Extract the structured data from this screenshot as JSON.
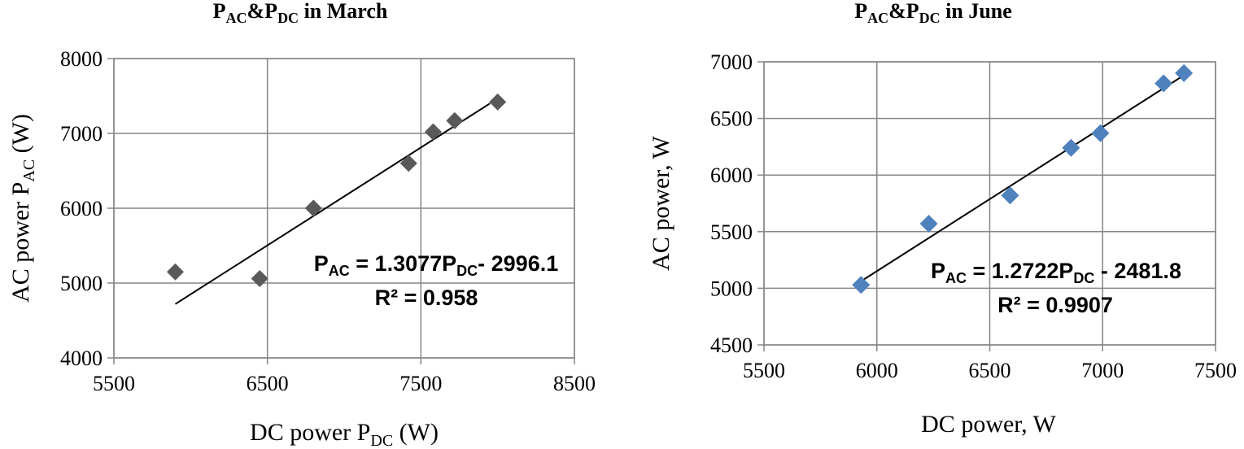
{
  "chart_data": [
    {
      "type": "scatter",
      "title": {
        "main": "P",
        "sub1": "AC",
        "mid": "&P",
        "sub2": "DC",
        "tail": " in March"
      },
      "xlabel": {
        "main": "DC power P",
        "sub": "DC",
        "tail": " (W)"
      },
      "ylabel": {
        "main": "AC power P",
        "sub": "AC",
        "tail": " (W)"
      },
      "xlim": [
        5500,
        8500
      ],
      "ylim": [
        4000,
        8000
      ],
      "x_ticks": [
        5500,
        6500,
        7500,
        8500
      ],
      "y_ticks": [
        4000,
        5000,
        6000,
        7000,
        8000
      ],
      "x_tick_labels": [
        "5500",
        "6500",
        "7500",
        "8500"
      ],
      "y_tick_labels": [
        "4000",
        "5000",
        "6000",
        "7000",
        "8000"
      ],
      "grid": true,
      "marker_color": "#595959",
      "points": [
        {
          "x": 5900,
          "y": 5150
        },
        {
          "x": 6450,
          "y": 5060
        },
        {
          "x": 6800,
          "y": 6000
        },
        {
          "x": 7420,
          "y": 6600
        },
        {
          "x": 7580,
          "y": 7020
        },
        {
          "x": 7720,
          "y": 7170
        },
        {
          "x": 8000,
          "y": 7420
        }
      ],
      "trendline": {
        "slope": 1.3077,
        "intercept": -2996.1,
        "x_range": [
          5900,
          7950
        ]
      },
      "equation": {
        "lhs": "P",
        "lhs_sub": "AC",
        "mid": " = 1.3077P",
        "mid_sub": "DC",
        "rhs": "- 2996.1"
      },
      "r2": "R² = 0.958"
    },
    {
      "type": "scatter",
      "title": {
        "main": "P",
        "sub1": "AC",
        "mid": "&P",
        "sub2": "DC",
        "tail": " in June"
      },
      "xlabel": {
        "main": "DC power, W"
      },
      "ylabel": {
        "main": "AC power,  W"
      },
      "xlim": [
        5500,
        7500
      ],
      "ylim": [
        4500,
        7000
      ],
      "x_ticks": [
        5500,
        6000,
        6500,
        7000,
        7500
      ],
      "y_ticks": [
        4500,
        5000,
        5500,
        6000,
        6500,
        7000
      ],
      "x_tick_labels": [
        "5500",
        "6000",
        "6500",
        "7000",
        "7500"
      ],
      "y_tick_labels": [
        "4500",
        "5000",
        "5500",
        "6000",
        "6500",
        "7000"
      ],
      "grid": true,
      "marker_color": "#4f81bd",
      "points": [
        {
          "x": 5930,
          "y": 5030
        },
        {
          "x": 6230,
          "y": 5570
        },
        {
          "x": 6590,
          "y": 5820
        },
        {
          "x": 6860,
          "y": 6240
        },
        {
          "x": 6990,
          "y": 6370
        },
        {
          "x": 7270,
          "y": 6810
        },
        {
          "x": 7360,
          "y": 6900
        }
      ],
      "trendline": {
        "slope": 1.2722,
        "intercept": -2481.8,
        "x_range": [
          5930,
          7360
        ]
      },
      "equation": {
        "lhs": "P",
        "lhs_sub": "AC",
        "mid": " = 1.2722P",
        "mid_sub": "DC",
        "rhs": " - 2481.8"
      },
      "r2": "R² = 0.9907"
    }
  ]
}
